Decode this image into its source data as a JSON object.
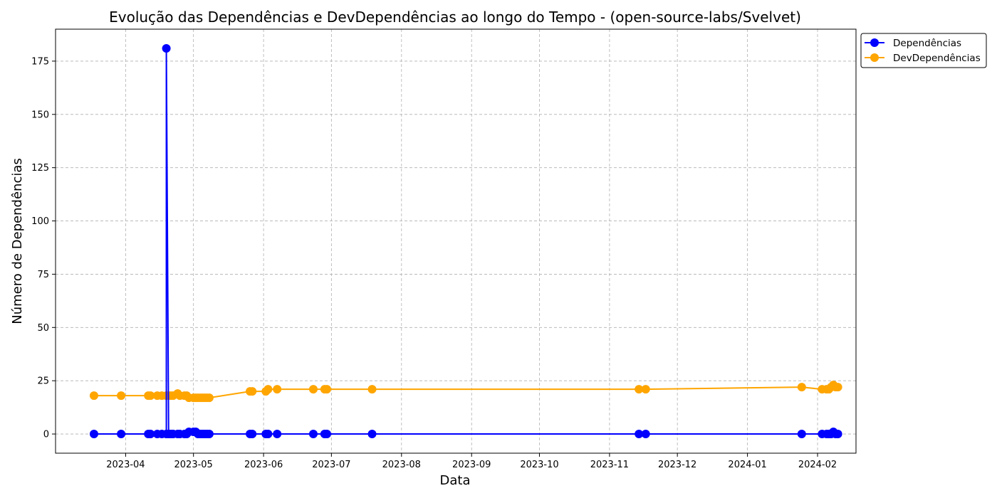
{
  "chart_data": {
    "type": "line",
    "title": "Evolução das Dependências e DevDependências ao longo do Tempo - (open-source-labs/Svelvet)",
    "xlabel": "Data",
    "ylabel": "Número de Dependências",
    "x_ticks": [
      "2023-04",
      "2023-05",
      "2023-06",
      "2023-07",
      "2023-08",
      "2023-09",
      "2023-10",
      "2023-11",
      "2023-12",
      "2024-01",
      "2024-02"
    ],
    "y_ticks": [
      0,
      25,
      50,
      75,
      100,
      125,
      150,
      175
    ],
    "xlim": [
      "2023-03-01",
      "2024-02-18"
    ],
    "ylim": [
      -9,
      190
    ],
    "grid": true,
    "legend_position": "top-right, outside plot",
    "series": [
      {
        "name": "Dependências",
        "color": "#0000ff",
        "x": [
          "2023-03-18",
          "2023-03-30",
          "2023-04-11",
          "2023-04-12",
          "2023-04-15",
          "2023-04-17",
          "2023-04-19",
          "2023-04-19",
          "2023-04-20",
          "2023-04-21",
          "2023-04-22",
          "2023-04-24",
          "2023-04-25",
          "2023-04-27",
          "2023-04-28",
          "2023-04-29",
          "2023-05-01",
          "2023-05-02",
          "2023-05-03",
          "2023-05-04",
          "2023-05-05",
          "2023-05-06",
          "2023-05-07",
          "2023-05-08",
          "2023-05-26",
          "2023-05-27",
          "2023-06-02",
          "2023-06-03",
          "2023-06-07",
          "2023-06-23",
          "2023-06-28",
          "2023-06-29",
          "2023-07-19",
          "2023-11-14",
          "2023-11-17",
          "2024-01-25",
          "2024-02-03",
          "2024-02-05",
          "2024-02-06",
          "2024-02-07",
          "2024-02-08",
          "2024-02-09",
          "2024-02-10"
        ],
        "values": [
          0,
          0,
          0,
          0,
          0,
          0,
          0,
          181,
          0,
          0,
          0,
          0,
          0,
          0,
          0,
          1,
          1,
          1,
          0,
          0,
          0,
          0,
          0,
          0,
          0,
          0,
          0,
          0,
          0,
          0,
          0,
          0,
          0,
          0,
          0,
          0,
          0,
          0,
          0,
          0,
          1,
          0,
          0
        ]
      },
      {
        "name": "DevDependências",
        "color": "#ffa500",
        "x": [
          "2023-03-18",
          "2023-03-30",
          "2023-04-11",
          "2023-04-12",
          "2023-04-15",
          "2023-04-17",
          "2023-04-19",
          "2023-04-20",
          "2023-04-21",
          "2023-04-22",
          "2023-04-24",
          "2023-04-25",
          "2023-04-27",
          "2023-04-28",
          "2023-04-29",
          "2023-05-01",
          "2023-05-02",
          "2023-05-03",
          "2023-05-04",
          "2023-05-05",
          "2023-05-06",
          "2023-05-07",
          "2023-05-08",
          "2023-05-26",
          "2023-05-27",
          "2023-06-02",
          "2023-06-03",
          "2023-06-07",
          "2023-06-23",
          "2023-06-28",
          "2023-06-29",
          "2023-07-19",
          "2023-11-14",
          "2023-11-17",
          "2024-01-25",
          "2024-02-03",
          "2024-02-05",
          "2024-02-06",
          "2024-02-07",
          "2024-02-08",
          "2024-02-09",
          "2024-02-10"
        ],
        "values": [
          18,
          18,
          18,
          18,
          18,
          18,
          18,
          18,
          18,
          18,
          19,
          18,
          18,
          18,
          17,
          17,
          17,
          17,
          17,
          17,
          17,
          17,
          17,
          20,
          20,
          20,
          21,
          21,
          21,
          21,
          21,
          21,
          21,
          21,
          22,
          21,
          21,
          21,
          22,
          23,
          22,
          22
        ]
      }
    ]
  }
}
